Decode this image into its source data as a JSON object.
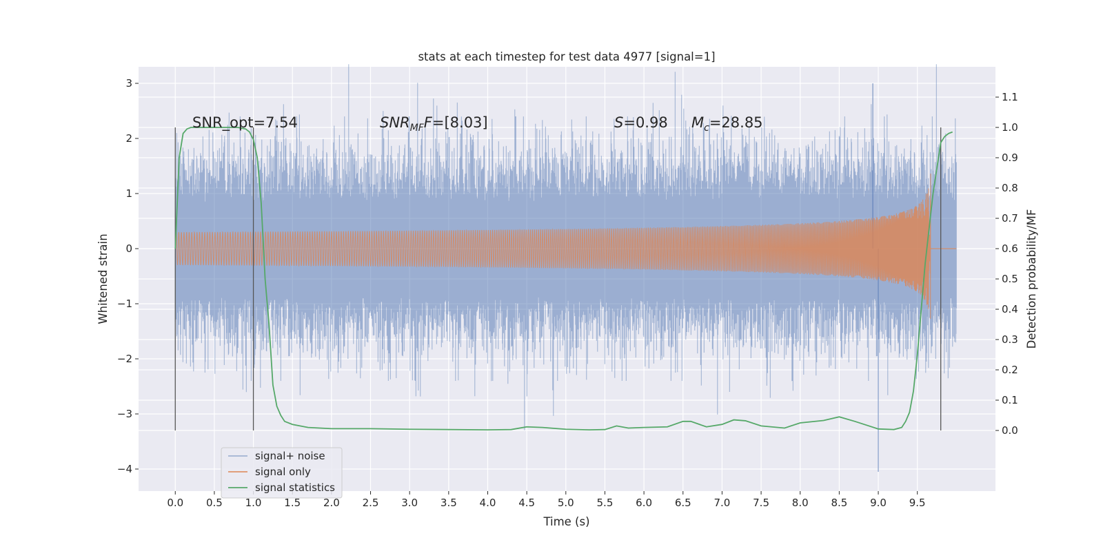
{
  "chart_data": {
    "type": "line",
    "title": "stats at each timestep for test data 4977 [signal=1]",
    "xlabel": "Time (s)",
    "ylabel": "Whitened strain",
    "y2label": "Detection probability/MF",
    "xlim": [
      -0.47,
      10.5
    ],
    "ylim": [
      -4.4,
      3.3
    ],
    "y2lim": [
      -0.2,
      1.2
    ],
    "x_ticks": [
      "0.0",
      "0.5",
      "1.0",
      "1.5",
      "2.0",
      "2.5",
      "3.0",
      "3.5",
      "4.0",
      "4.5",
      "5.0",
      "5.5",
      "6.0",
      "6.5",
      "7.0",
      "7.5",
      "8.0",
      "8.5",
      "9.0",
      "9.5"
    ],
    "y_ticks": [
      "3",
      "2",
      "1",
      "0",
      "−1",
      "−2",
      "−3",
      "−4"
    ],
    "y2_ticks": [
      "1.1",
      "1.0",
      "0.9",
      "0.8",
      "0.7",
      "0.6",
      "0.5",
      "0.4",
      "0.3",
      "0.2",
      "0.1",
      "0.0"
    ],
    "grid": true,
    "legend_position": "lower-left",
    "annotations": {
      "snr_opt": "SNR_opt=7.54",
      "snr_mf_base": "SNR",
      "snr_mf_sub": "MF",
      "snr_mf_rest": "=[8.03]",
      "s_label": "S",
      "s_rest": "=0.98",
      "mc_base": "M",
      "mc_sub": "c",
      "mc_rest": "=28.85"
    },
    "vertical_markers": [
      0.0,
      1.0,
      9.8
    ],
    "series": [
      {
        "name": "signal+ noise",
        "color": "#4c72b0",
        "noise_band": {
          "t_start": 0.0,
          "t_end": 10.0,
          "dense_amplitude": 1.1,
          "peak_max": 3.0,
          "peak_min": -4.05
        }
      },
      {
        "name": "signal only",
        "color": "#dd8452",
        "chirp": {
          "t_start": 0.0,
          "t_merger": 9.67,
          "peak_amplitude": 1.4
        }
      },
      {
        "name": "signal statistics",
        "color": "#55a868",
        "x": [
          0.0,
          0.05,
          0.1,
          0.15,
          0.2,
          0.5,
          0.8,
          0.9,
          0.95,
          1.0,
          1.05,
          1.1,
          1.15,
          1.2,
          1.25,
          1.3,
          1.35,
          1.4,
          1.5,
          1.7,
          2.0,
          2.5,
          3.0,
          3.5,
          4.0,
          4.3,
          4.5,
          4.7,
          5.0,
          5.3,
          5.5,
          5.65,
          5.8,
          6.0,
          6.3,
          6.5,
          6.6,
          6.8,
          7.0,
          7.15,
          7.3,
          7.5,
          7.8,
          8.0,
          8.3,
          8.5,
          8.7,
          9.0,
          9.2,
          9.3,
          9.35,
          9.4,
          9.45,
          9.5,
          9.55,
          9.6,
          9.7,
          9.8,
          9.85,
          9.9,
          9.95
        ],
        "y": [
          0.6,
          0.9,
          0.98,
          0.995,
          1.0,
          1.0,
          1.0,
          0.995,
          0.985,
          0.96,
          0.9,
          0.75,
          0.5,
          0.35,
          0.15,
          0.08,
          0.05,
          0.03,
          0.02,
          0.01,
          0.006,
          0.006,
          0.004,
          0.003,
          0.002,
          0.003,
          0.012,
          0.01,
          0.004,
          0.002,
          0.003,
          0.015,
          0.008,
          0.01,
          0.012,
          0.03,
          0.03,
          0.012,
          0.02,
          0.035,
          0.032,
          0.015,
          0.008,
          0.025,
          0.033,
          0.045,
          0.03,
          0.005,
          0.003,
          0.01,
          0.03,
          0.06,
          0.13,
          0.25,
          0.4,
          0.55,
          0.78,
          0.95,
          0.97,
          0.98,
          0.985
        ]
      }
    ]
  }
}
